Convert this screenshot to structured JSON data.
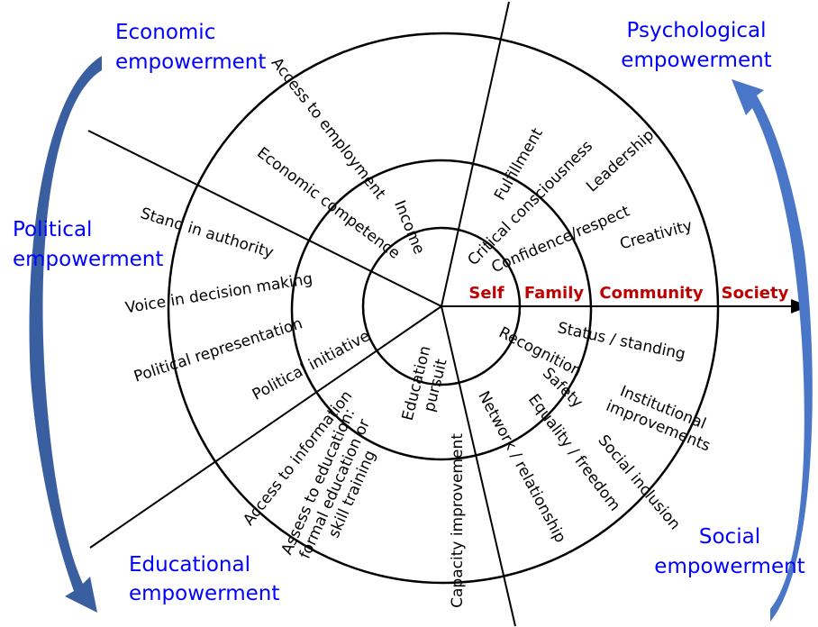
{
  "colors": {
    "dimension": "#0000ff",
    "ring_label": "#c00000",
    "arrow": "#3a5fa0"
  },
  "dimensions": {
    "economic": [
      "Economic",
      "empowerment"
    ],
    "psychological": [
      "Psychological",
      "empowerment"
    ],
    "political": [
      "Political",
      "empowerment"
    ],
    "educational": [
      "Educational",
      "empowerment"
    ],
    "social": [
      "Social",
      "empowerment"
    ]
  },
  "rings": [
    "Self",
    "Family",
    "Community",
    "Society"
  ],
  "items": {
    "access_employment": "Access to employment",
    "economic_competence": "Economic competence",
    "income": "Income",
    "fulfillment": "Fulfillment",
    "critical_consciousness": "Critical consciousness",
    "leadership": "Leadership",
    "confidence": "Confidence/respect",
    "creativity": "Creativity",
    "stand_authority": "Stand in authority",
    "voice": "Voice in decision making",
    "political_representation": "Political representation",
    "political_initiative": "Political initiative",
    "access_information": "Access to information",
    "assess_education": [
      "Assess to education:",
      "formal education or",
      "skill training"
    ],
    "education_pursuit": [
      "Education",
      "pursuit"
    ],
    "capacity": "Capacity improvement",
    "network": "Network / relationship",
    "recognition": "Recognition",
    "status": "Status / standing",
    "safety": "Safety",
    "equality": "Equality / freedom",
    "institutional": [
      "Institutional",
      "improvements"
    ],
    "social_inclusion": "Social inclusion"
  }
}
